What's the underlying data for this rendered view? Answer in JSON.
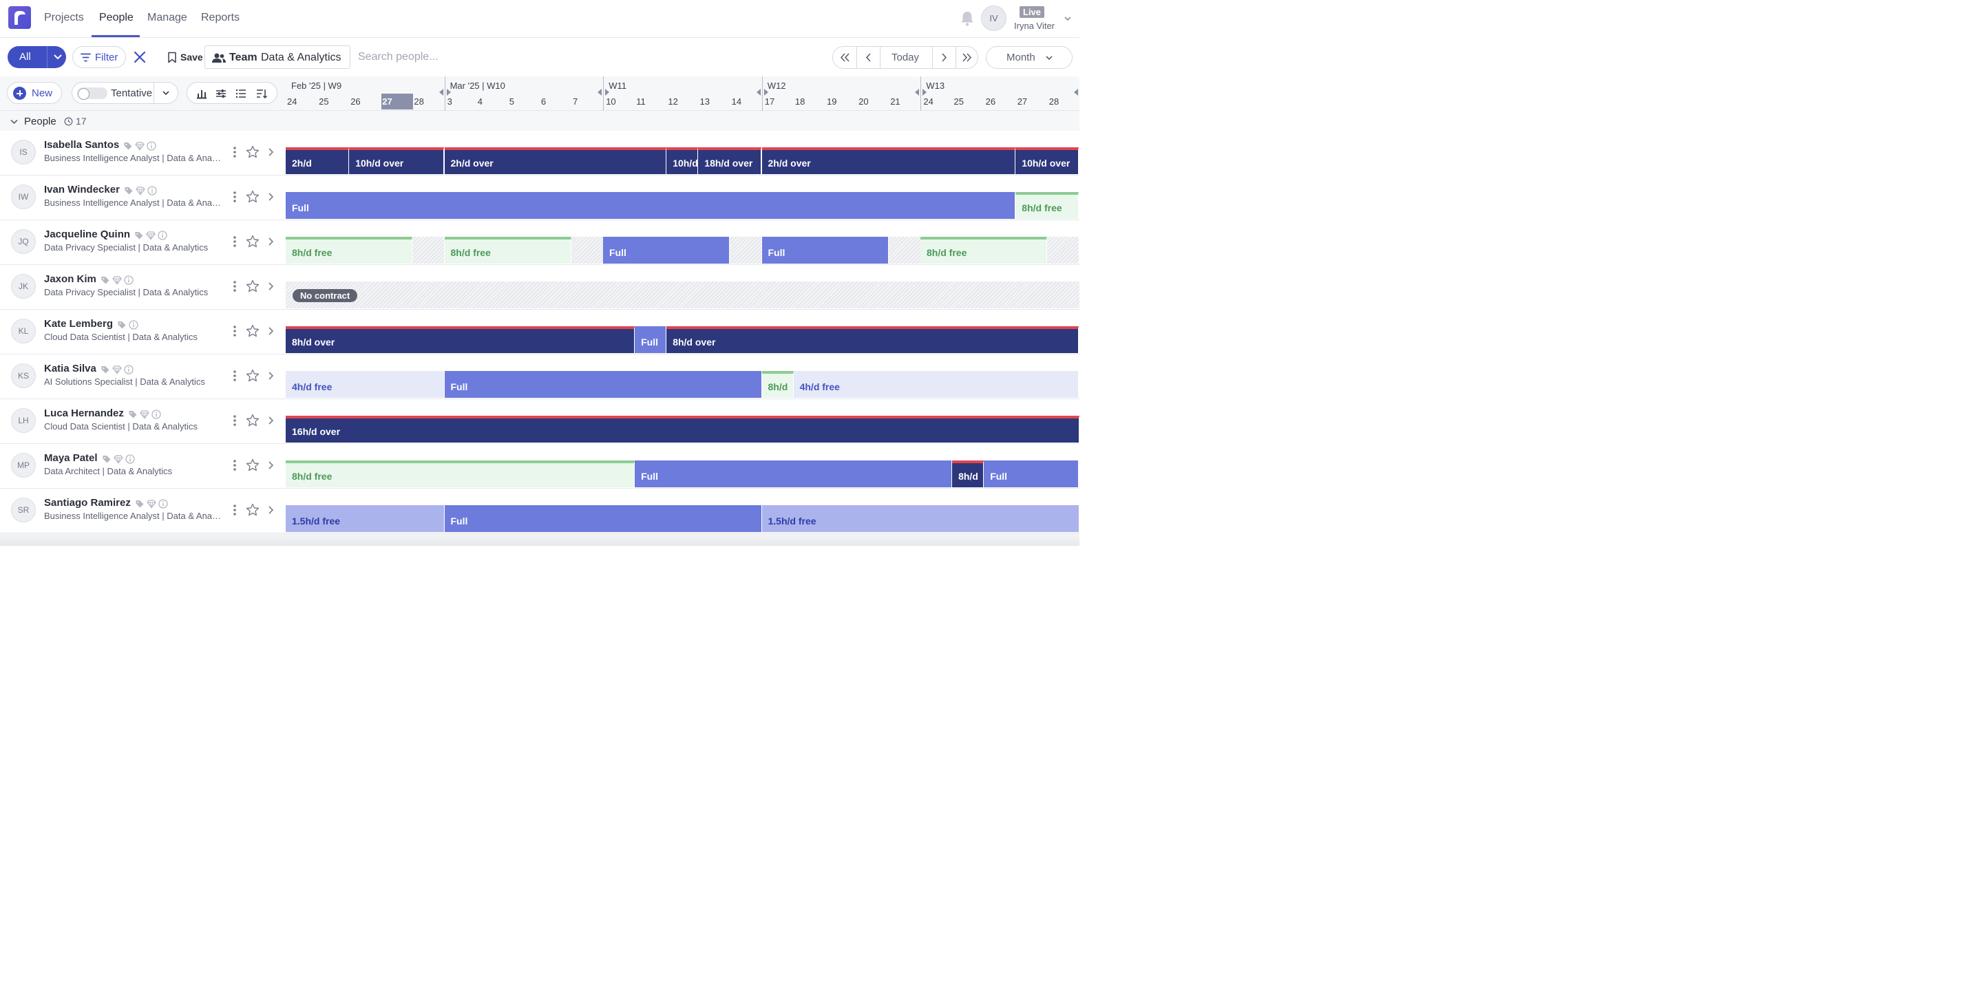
{
  "nav": {
    "tabs": [
      "Projects",
      "People",
      "Manage",
      "Reports"
    ],
    "active_tab": "People",
    "user_initials": "IV",
    "env_badge": "Live",
    "user_name": "Iryna Viter"
  },
  "toolbar": {
    "all_label": "All",
    "filter_label": "Filter",
    "save_label": "Save",
    "team_key": "Team",
    "team_value": "Data & Analytics",
    "search_placeholder": "Search people...",
    "today_label": "Today",
    "period_label": "Month"
  },
  "toolbar2": {
    "new_label": "New",
    "tentative_label": "Tentative",
    "tentative_on": false
  },
  "timeline": {
    "weeks": [
      {
        "label": "Feb '25 | W9",
        "days": [
          "24",
          "25",
          "26",
          "27",
          "28"
        ]
      },
      {
        "label": "Mar '25 | W10",
        "days": [
          "3",
          "4",
          "5",
          "6",
          "7"
        ]
      },
      {
        "label": "W11",
        "days": [
          "10",
          "11",
          "12",
          "13",
          "14"
        ]
      },
      {
        "label": "W12",
        "days": [
          "17",
          "18",
          "19",
          "20",
          "21"
        ]
      },
      {
        "label": "W13",
        "days": [
          "24",
          "25",
          "26",
          "27",
          "28"
        ]
      }
    ],
    "today": "27"
  },
  "group": {
    "label": "People",
    "count": "17"
  },
  "colors": {
    "over": "#2c377c",
    "over_line": "#e0454f",
    "full": "#6d7bdc",
    "free": "#eaf7ec",
    "free_line": "#8ccc93",
    "partial": "#e6e9f8",
    "accent": "#3f4fc3"
  },
  "people": [
    {
      "initials": "IS",
      "name": "Isabella Santos",
      "role": "Business Intelligence Analyst | Data & Analytics",
      "icons": [
        "tag-icon",
        "diamond-icon",
        "info-icon"
      ],
      "bars": [
        {
          "label": "2h/d",
          "kind": "over",
          "days": 2
        },
        {
          "label": "10h/d over",
          "kind": "over",
          "days": 3
        },
        {
          "label": "2h/d over",
          "kind": "over",
          "days": 7
        },
        {
          "label": "10h/d",
          "kind": "over",
          "days": 1
        },
        {
          "label": "18h/d over",
          "kind": "over",
          "days": 2
        },
        {
          "label": "2h/d over",
          "kind": "over",
          "days": 8
        },
        {
          "label": "10h/d over",
          "kind": "over",
          "days": 2
        }
      ]
    },
    {
      "initials": "IW",
      "name": "Ivan Windecker",
      "role": "Business Intelligence Analyst | Data & Analytics",
      "icons": [
        "tag-icon",
        "diamond-icon",
        "info-icon"
      ],
      "bars": [
        {
          "label": "Full",
          "kind": "full",
          "days": 23
        },
        {
          "label": "8h/d free",
          "kind": "free",
          "days": 2
        }
      ]
    },
    {
      "initials": "JQ",
      "name": "Jacqueline Quinn",
      "role": "Data Privacy Specialist | Data & Analytics",
      "icons": [
        "tag-icon",
        "diamond-icon",
        "info-icon"
      ],
      "bars": [
        {
          "label": "8h/d free",
          "kind": "free",
          "days": 4
        },
        {
          "label": "",
          "kind": "hatch",
          "days": 1
        },
        {
          "label": "8h/d free",
          "kind": "free",
          "days": 4
        },
        {
          "label": "",
          "kind": "hatch",
          "days": 1
        },
        {
          "label": "Full",
          "kind": "full",
          "days": 4
        },
        {
          "label": "",
          "kind": "hatch",
          "days": 1
        },
        {
          "label": "Full",
          "kind": "full",
          "days": 4
        },
        {
          "label": "",
          "kind": "hatch",
          "days": 1
        },
        {
          "label": "8h/d free",
          "kind": "free",
          "days": 4
        },
        {
          "label": "",
          "kind": "hatch",
          "days": 1
        }
      ]
    },
    {
      "initials": "JK",
      "name": "Jaxon Kim",
      "role": "Data Privacy Specialist | Data & Analytics",
      "icons": [
        "tag-icon",
        "diamond-icon",
        "info-icon"
      ],
      "bars": [],
      "no_contract": "No contract"
    },
    {
      "initials": "KL",
      "name": "Kate Lemberg",
      "role": "Cloud Data Scientist | Data & Analytics",
      "icons": [
        "tag-icon",
        "info-icon"
      ],
      "bars": [
        {
          "label": "8h/d over",
          "kind": "over",
          "days": 11
        },
        {
          "label": "Full",
          "kind": "full",
          "days": 1
        },
        {
          "label": "8h/d over",
          "kind": "over",
          "days": 13
        }
      ]
    },
    {
      "initials": "KS",
      "name": "Katia Silva",
      "role": "AI Solutions Specialist | Data & Analytics",
      "icons": [
        "tag-icon",
        "diamond-icon",
        "info-icon"
      ],
      "bars": [
        {
          "label": "4h/d free",
          "kind": "part",
          "days": 5
        },
        {
          "label": "Full",
          "kind": "full",
          "days": 10
        },
        {
          "label": "8h/d",
          "kind": "free",
          "days": 1
        },
        {
          "label": "4h/d free",
          "kind": "part",
          "days": 9
        }
      ]
    },
    {
      "initials": "LH",
      "name": "Luca Hernandez",
      "role": "Cloud Data Scientist | Data & Analytics",
      "icons": [
        "tag-icon",
        "diamond-icon",
        "info-icon"
      ],
      "bars": [
        {
          "label": "16h/d over",
          "kind": "over",
          "days": 25
        }
      ]
    },
    {
      "initials": "MP",
      "name": "Maya Patel",
      "role": "Data Architect | Data & Analytics",
      "icons": [
        "tag-icon",
        "diamond-icon",
        "info-icon"
      ],
      "bars": [
        {
          "label": "8h/d free",
          "kind": "free",
          "days": 11
        },
        {
          "label": "Full",
          "kind": "full",
          "days": 10
        },
        {
          "label": "8h/d",
          "kind": "over",
          "days": 1
        },
        {
          "label": "Full",
          "kind": "full",
          "days": 3
        }
      ]
    },
    {
      "initials": "SR",
      "name": "Santiago Ramirez",
      "role": "Business Intelligence Analyst | Data & Analytics",
      "icons": [
        "tag-icon",
        "diamond-icon",
        "info-icon"
      ],
      "bars": [
        {
          "label": "1.5h/d free",
          "kind": "part15",
          "days": 5
        },
        {
          "label": "Full",
          "kind": "full",
          "days": 10
        },
        {
          "label": "1.5h/d free",
          "kind": "part15",
          "days": 10
        }
      ]
    }
  ]
}
